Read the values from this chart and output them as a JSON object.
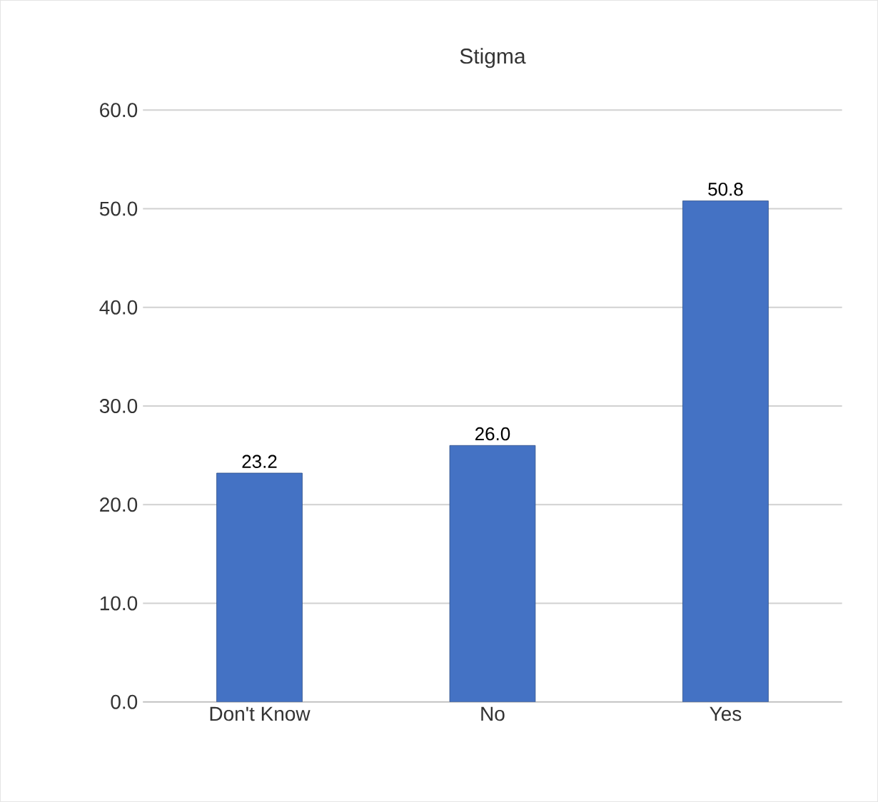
{
  "chart_data": {
    "type": "bar",
    "title": "Stigma",
    "categories": [
      "Don't Know",
      "No",
      "Yes"
    ],
    "values": [
      23.2,
      26.0,
      50.8
    ],
    "value_labels": [
      "23.2",
      "26.0",
      "50.8"
    ],
    "color": "#4472c4",
    "ylim": [
      0,
      60
    ],
    "yticks": [
      {
        "value": 0,
        "label": "0.0"
      },
      {
        "value": 10,
        "label": "10.0"
      },
      {
        "value": 20,
        "label": "20.0"
      },
      {
        "value": 30,
        "label": "30.0"
      },
      {
        "value": 40,
        "label": "40.0"
      },
      {
        "value": 50,
        "label": "50.0"
      },
      {
        "value": 60,
        "label": "60.0"
      }
    ],
    "grid": "y"
  }
}
